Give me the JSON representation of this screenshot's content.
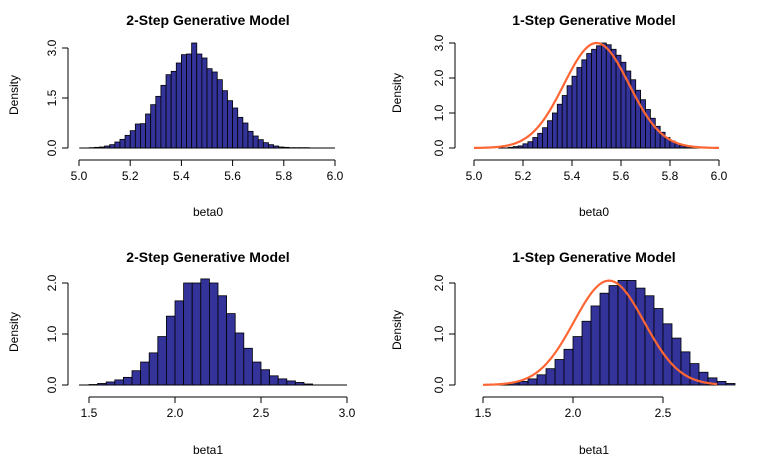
{
  "chart_data": [
    {
      "type": "bar",
      "title": "2-Step Generative Model",
      "xlabel": "beta0",
      "ylabel": "Density",
      "xlim": [
        5.0,
        6.0
      ],
      "ylim": [
        0,
        3.0
      ],
      "x_ticks": [
        "5.0",
        "5.2",
        "5.4",
        "5.6",
        "5.8",
        "6.0"
      ],
      "y_ticks": [
        "0.0",
        "1.5",
        "3.0"
      ],
      "bin_width": 0.02,
      "bin_start": 5.04,
      "densities": [
        0.01,
        0.02,
        0.03,
        0.06,
        0.1,
        0.18,
        0.26,
        0.38,
        0.52,
        0.72,
        0.73,
        1.02,
        1.3,
        1.55,
        1.88,
        2.2,
        2.3,
        2.55,
        2.8,
        2.82,
        3.15,
        2.82,
        2.7,
        2.38,
        2.28,
        2.05,
        1.72,
        1.42,
        1.2,
        0.92,
        0.75,
        0.5,
        0.36,
        0.25,
        0.16,
        0.1,
        0.06,
        0.03,
        0.02,
        0.01,
        0.01,
        0.01,
        0.01
      ],
      "bar_fill": "#333399",
      "curve": null
    },
    {
      "type": "bar",
      "title": "1-Step Generative Model",
      "xlabel": "beta0",
      "ylabel": "Density",
      "xlim": [
        5.0,
        6.0
      ],
      "ylim": [
        0,
        3.0
      ],
      "x_ticks": [
        "5.0",
        "5.2",
        "5.4",
        "5.6",
        "5.8",
        "6.0"
      ],
      "y_ticks": [
        "0.0",
        "1.0",
        "2.0",
        "3.0"
      ],
      "bin_width": 0.02,
      "bin_start": 5.14,
      "densities": [
        0.02,
        0.04,
        0.06,
        0.12,
        0.18,
        0.3,
        0.42,
        0.58,
        0.78,
        1.0,
        1.25,
        1.5,
        1.78,
        2.05,
        2.3,
        2.52,
        2.7,
        2.82,
        2.92,
        3.0,
        2.95,
        2.82,
        2.65,
        2.45,
        2.2,
        1.95,
        1.65,
        1.38,
        1.1,
        0.85,
        0.62,
        0.45,
        0.3,
        0.2,
        0.12,
        0.07,
        0.04,
        0.02
      ],
      "bar_fill": "#333399",
      "curve": {
        "type": "normal",
        "mean": 5.5,
        "sd": 0.133,
        "color": "#ff6633"
      }
    },
    {
      "type": "bar",
      "title": "2-Step Generative Model",
      "xlabel": "beta1",
      "ylabel": "Density",
      "xlim": [
        1.5,
        3.0
      ],
      "ylim": [
        0,
        2.0
      ],
      "x_ticks": [
        "1.5",
        "2.0",
        "2.5",
        "3.0"
      ],
      "y_ticks": [
        "0.0",
        "1.0",
        "2.0"
      ],
      "bin_width": 0.05,
      "bin_start": 1.5,
      "densities": [
        0.01,
        0.03,
        0.06,
        0.1,
        0.15,
        0.28,
        0.45,
        0.63,
        0.95,
        1.35,
        1.65,
        2.0,
        2.0,
        2.08,
        2.0,
        1.75,
        1.4,
        1.02,
        0.72,
        0.45,
        0.3,
        0.18,
        0.12,
        0.08,
        0.05,
        0.02
      ],
      "bar_fill": "#333399",
      "curve": null
    },
    {
      "type": "bar",
      "title": "1-Step Generative Model",
      "xlabel": "beta1",
      "ylabel": "Density",
      "xlim": [
        1.5,
        2.8
      ],
      "ylim": [
        0,
        2.0
      ],
      "x_ticks": [
        "1.5",
        "2.0",
        "2.5"
      ],
      "y_ticks": [
        "0.0",
        "1.0",
        "2.0"
      ],
      "bin_width": 0.05,
      "bin_start": 1.6,
      "densities": [
        0.02,
        0.04,
        0.07,
        0.12,
        0.2,
        0.32,
        0.5,
        0.7,
        0.95,
        1.25,
        1.55,
        1.8,
        1.95,
        2.05,
        2.05,
        1.9,
        1.75,
        1.5,
        1.2,
        0.92,
        0.65,
        0.42,
        0.25,
        0.14,
        0.07,
        0.03
      ],
      "bar_fill": "#333399",
      "curve": {
        "type": "normal",
        "mean": 2.2,
        "sd": 0.195,
        "color": "#ff6633"
      }
    }
  ]
}
